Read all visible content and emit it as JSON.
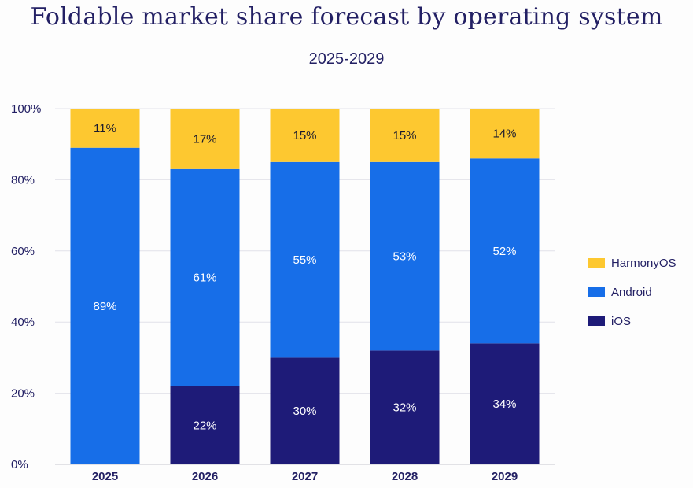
{
  "chart_data": {
    "type": "bar",
    "stacked": true,
    "title": "Foldable market share forecast by operating system",
    "subtitle": "2025-2029",
    "categories": [
      "2025",
      "2026",
      "2027",
      "2028",
      "2029"
    ],
    "series": [
      {
        "name": "iOS",
        "color": "#1e1b78",
        "values": [
          0,
          22,
          30,
          32,
          34
        ],
        "labels": [
          "",
          "22%",
          "30%",
          "32%",
          "34%"
        ],
        "label_color": "#ffffff"
      },
      {
        "name": "Android",
        "color": "#176ee8",
        "values": [
          89,
          61,
          55,
          53,
          52
        ],
        "labels": [
          "89%",
          "61%",
          "55%",
          "53%",
          "52%"
        ],
        "label_color": "#ffffff"
      },
      {
        "name": "HarmonyOS",
        "color": "#fdc830",
        "values": [
          11,
          17,
          15,
          15,
          14
        ],
        "labels": [
          "11%",
          "17%",
          "15%",
          "15%",
          "14%"
        ],
        "label_color": "#1a1a2e"
      }
    ],
    "legend_order": [
      "HarmonyOS",
      "Android",
      "iOS"
    ],
    "yticks": [
      "0%",
      "20%",
      "40%",
      "60%",
      "80%",
      "100%"
    ],
    "ylim": [
      0,
      100
    ],
    "grid": true,
    "legend": "right"
  }
}
